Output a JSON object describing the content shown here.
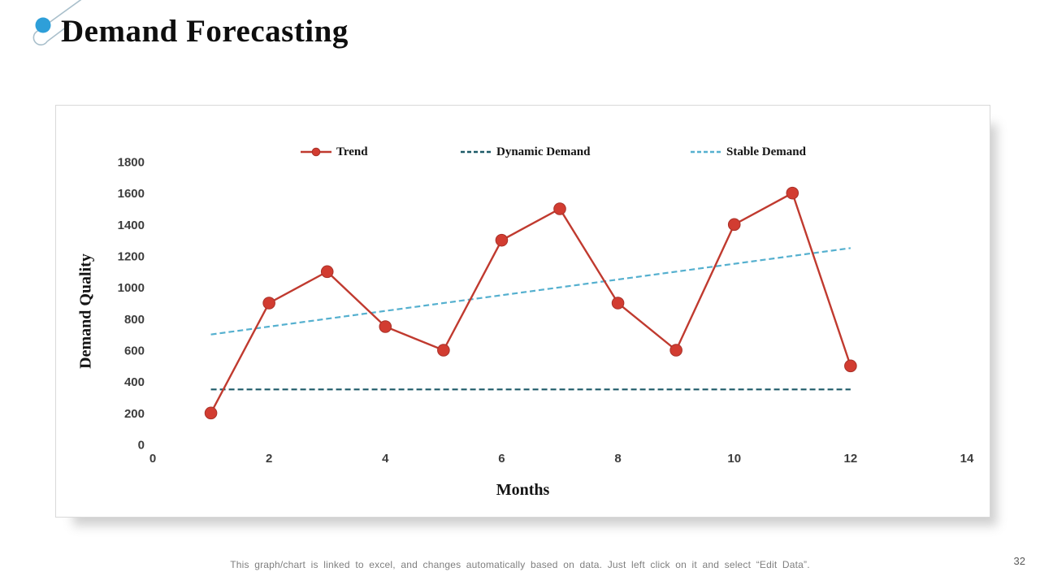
{
  "slide": {
    "title": "Demand Forecasting",
    "page_number": "32",
    "footer_note": "This graph/chart is linked to excel, and changes automatically based on data. Just left click on it and select “Edit Data”."
  },
  "icon_colors": {
    "dot_blue": "#2e9fd9",
    "line_gray_blue": "#a9bfcb"
  },
  "chart_data": {
    "type": "line",
    "title": "",
    "xlabel": "Months",
    "ylabel": "Demand Quality",
    "xlim": [
      0,
      14
    ],
    "ylim": [
      0,
      1800
    ],
    "x_ticks": [
      0,
      2,
      4,
      6,
      8,
      10,
      12,
      14
    ],
    "y_ticks": [
      0,
      200,
      400,
      600,
      800,
      1000,
      1200,
      1400,
      1600,
      1800
    ],
    "grid": false,
    "legend_position": "top",
    "series": [
      {
        "name": "Trend",
        "style": "line-markers",
        "color": "#c03a2f",
        "marker_fill": "#d23c31",
        "marker_edge": "#a8322a",
        "x": [
          1,
          2,
          3,
          4,
          5,
          6,
          7,
          8,
          9,
          10,
          11,
          12
        ],
        "y": [
          200,
          900,
          1100,
          750,
          600,
          1300,
          1500,
          900,
          600,
          1400,
          1600,
          500
        ]
      },
      {
        "name": "Dynamic Demand",
        "style": "dashed",
        "color": "#1d5a68",
        "x": [
          1,
          12
        ],
        "y": [
          350,
          350
        ]
      },
      {
        "name": "Stable Demand",
        "style": "dashed",
        "color": "#55b0cf",
        "x": [
          1,
          12
        ],
        "y": [
          700,
          1250
        ]
      }
    ]
  }
}
